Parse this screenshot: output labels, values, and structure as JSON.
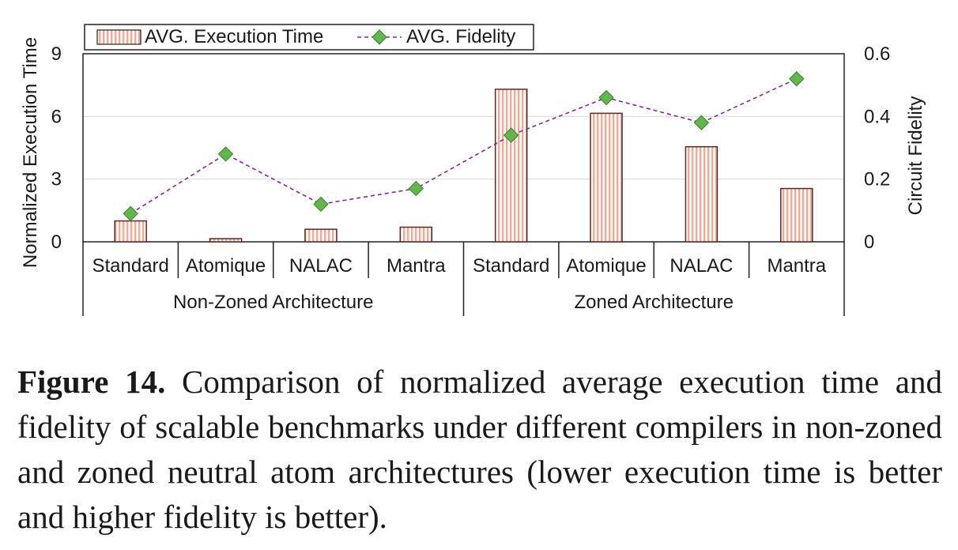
{
  "chart_data": {
    "type": "bar",
    "groups": [
      {
        "name": "Non-Zoned Architecture",
        "categories": [
          "Standard",
          "Atomique",
          "NALAC",
          "Mantra"
        ]
      },
      {
        "name": "Zoned Architecture",
        "categories": [
          "Standard",
          "Atomique",
          "NALAC",
          "Mantra"
        ]
      }
    ],
    "categories": [
      "Standard",
      "Atomique",
      "NALAC",
      "Mantra",
      "Standard",
      "Atomique",
      "NALAC",
      "Mantra"
    ],
    "series": [
      {
        "name": "AVG. Execution Time",
        "kind": "bar",
        "axis": "left",
        "values": [
          1.0,
          0.15,
          0.6,
          0.7,
          7.3,
          6.15,
          4.55,
          2.55
        ],
        "color": "#f4b9a8",
        "hatch": "vertical"
      },
      {
        "name": "AVG. Fidelity",
        "kind": "line",
        "axis": "right",
        "values": [
          0.09,
          0.28,
          0.12,
          0.17,
          0.34,
          0.46,
          0.38,
          0.52
        ],
        "color": "#62b74a",
        "line_color": "#7a2f7f"
      }
    ],
    "ylabel": "Normalized Execution Time",
    "y2label": "Circuit Fidelity",
    "ylim": [
      0,
      9
    ],
    "y2lim": [
      0,
      0.6
    ],
    "yticks": [
      "0",
      "3",
      "6",
      "9"
    ],
    "y2ticks": [
      "0",
      "0.2",
      "0.4",
      "0.6"
    ],
    "grid": true,
    "legend_position": "top-left"
  },
  "caption": {
    "label": "Figure 14.",
    "text": " Comparison of normalized average execution time and fidelity of scalable benchmarks under different compilers in non-zoned and zoned neutral atom architectures (lower execution time is better and higher fidelity is better)."
  }
}
